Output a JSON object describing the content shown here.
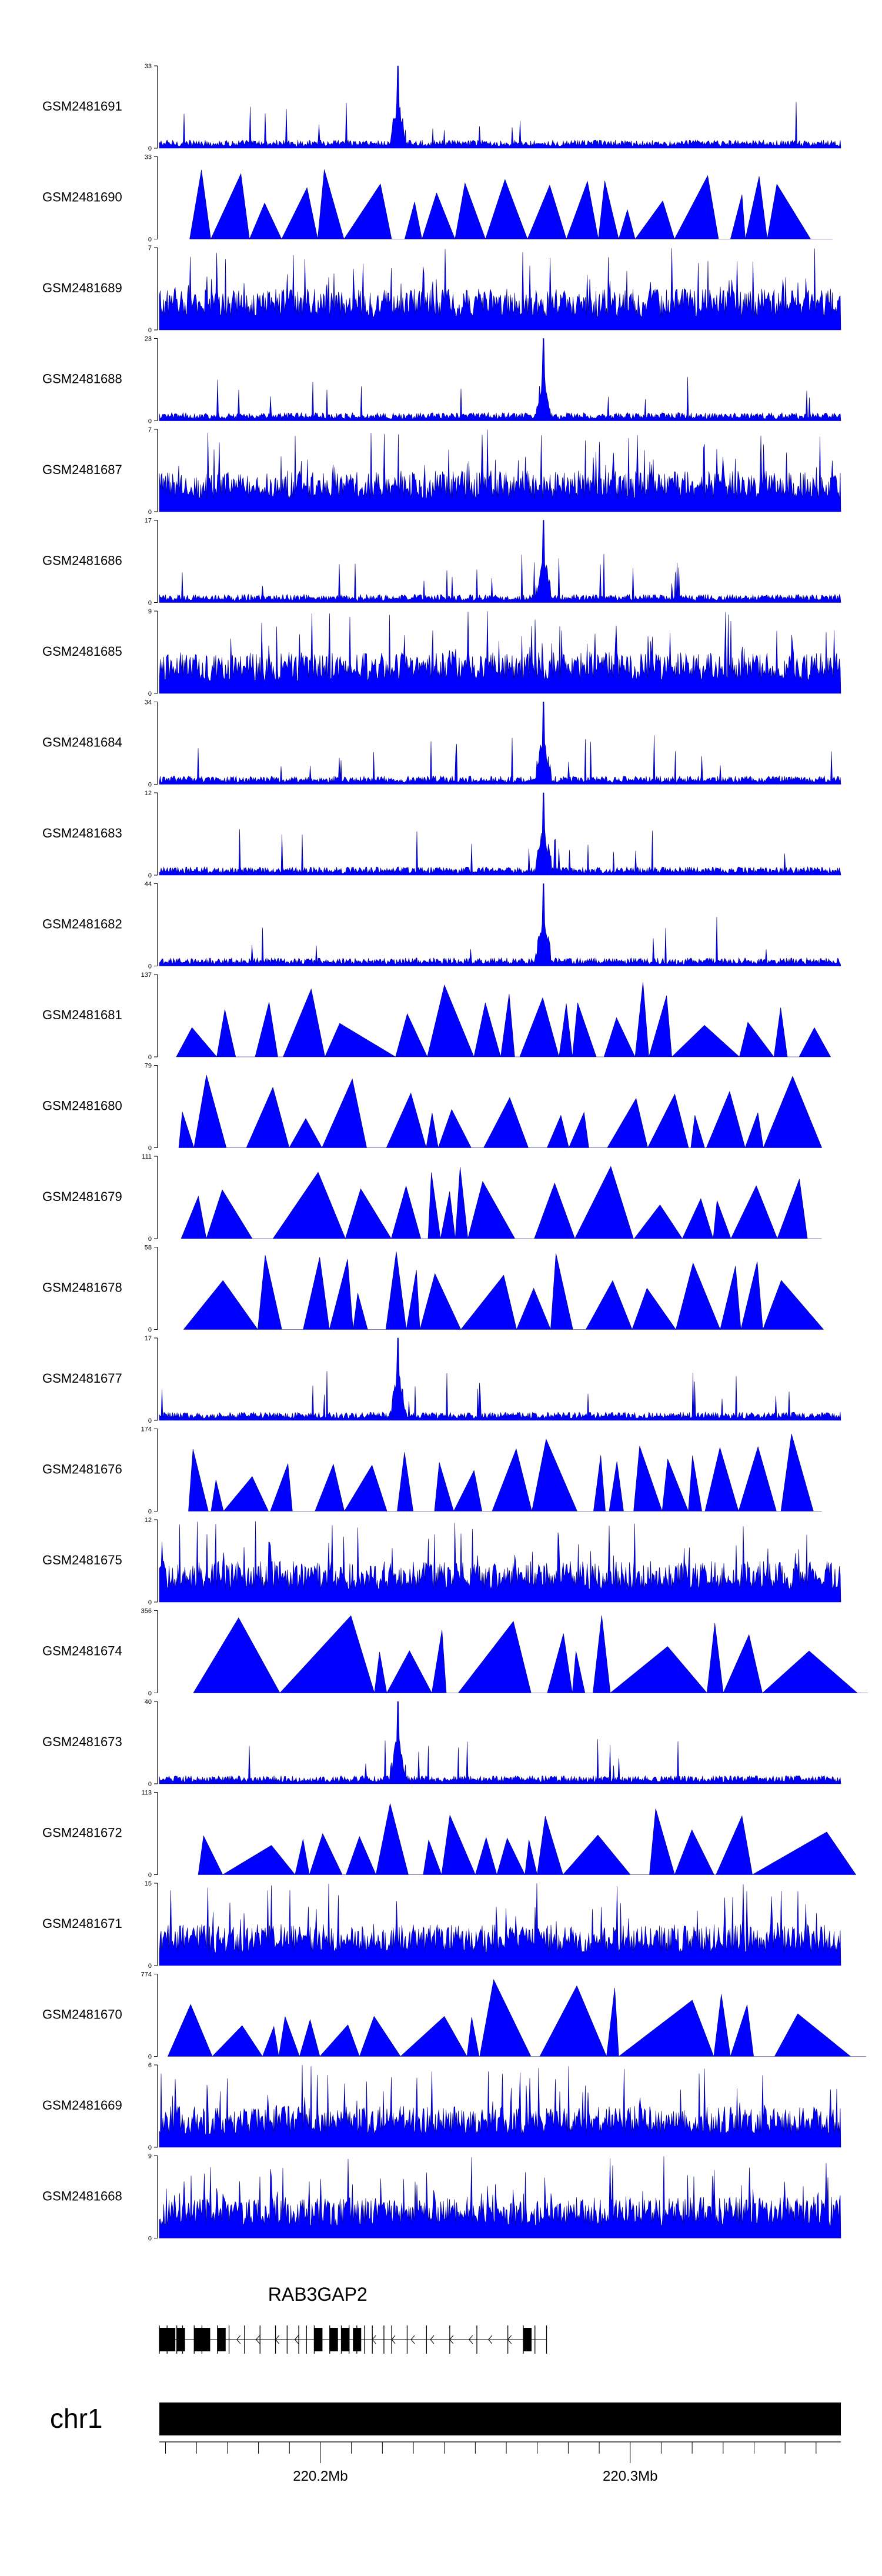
{
  "chart_data": {
    "type": "area",
    "fill_color": "#0000FF",
    "outline_color": "#000080",
    "genome": {
      "chromosome": "chr1",
      "x_range_mb": [
        220.148,
        220.368
      ],
      "ticks": [
        {
          "mb": 220.2,
          "label": "220.2Mb"
        },
        {
          "mb": 220.3,
          "label": "220.3Mb"
        }
      ]
    },
    "gene": {
      "name": "RAB3GAP2",
      "strand": "-",
      "start_mb": 220.148,
      "end_mb": 220.273
    },
    "tracks": [
      {
        "name": "GSM2481691",
        "ymax": "33",
        "style": "spiky",
        "peak_mb": 220.225
      },
      {
        "name": "GSM2481690",
        "ymax": "33",
        "style": "triangles"
      },
      {
        "name": "GSM2481689",
        "ymax": "7",
        "style": "dense"
      },
      {
        "name": "GSM2481688",
        "ymax": "23",
        "style": "spiky",
        "peak_mb": 220.272
      },
      {
        "name": "GSM2481687",
        "ymax": "7",
        "style": "dense"
      },
      {
        "name": "GSM2481686",
        "ymax": "17",
        "style": "spiky",
        "peak_mb": 220.272
      },
      {
        "name": "GSM2481685",
        "ymax": "9",
        "style": "dense"
      },
      {
        "name": "GSM2481684",
        "ymax": "34",
        "style": "spiky",
        "peak_mb": 220.272
      },
      {
        "name": "GSM2481683",
        "ymax": "12",
        "style": "spiky",
        "peak_mb": 220.272
      },
      {
        "name": "GSM2481682",
        "ymax": "44",
        "style": "spiky",
        "peak_mb": 220.272
      },
      {
        "name": "GSM2481681",
        "ymax": "137",
        "style": "triangles"
      },
      {
        "name": "GSM2481680",
        "ymax": "79",
        "style": "triangles"
      },
      {
        "name": "GSM2481679",
        "ymax": "111",
        "style": "triangles"
      },
      {
        "name": "GSM2481678",
        "ymax": "58",
        "style": "triangles"
      },
      {
        "name": "GSM2481677",
        "ymax": "17",
        "style": "spiky",
        "peak_mb": 220.225
      },
      {
        "name": "GSM2481676",
        "ymax": "174",
        "style": "triangles"
      },
      {
        "name": "GSM2481675",
        "ymax": "12",
        "style": "dense"
      },
      {
        "name": "GSM2481674",
        "ymax": "356",
        "style": "triangles"
      },
      {
        "name": "GSM2481673",
        "ymax": "40",
        "style": "spiky",
        "peak_mb": 220.225
      },
      {
        "name": "GSM2481672",
        "ymax": "113",
        "style": "triangles"
      },
      {
        "name": "GSM2481671",
        "ymax": "15",
        "style": "dense"
      },
      {
        "name": "GSM2481670",
        "ymax": "774",
        "style": "triangles"
      },
      {
        "name": "GSM2481669",
        "ymax": "6",
        "style": "dense"
      },
      {
        "name": "GSM2481668",
        "ymax": "9",
        "style": "dense"
      }
    ],
    "ymin_label": "0"
  }
}
